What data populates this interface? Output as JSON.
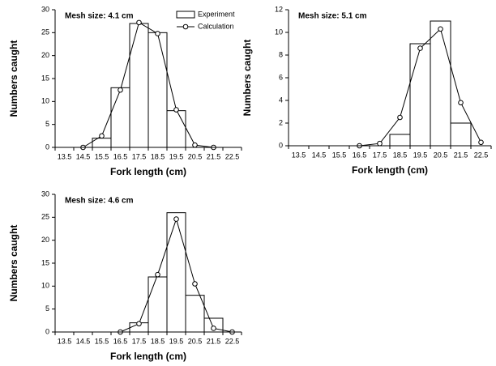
{
  "chart_data": [
    {
      "type": "bar",
      "title": "Mesh size: 4.1 cm",
      "xlabel": "Fork length (cm)",
      "ylabel": "Numbers caught",
      "categories": [
        "13.5",
        "14.5",
        "15.5",
        "16.5",
        "17.5",
        "18.5",
        "19.5",
        "20.5",
        "21.5",
        "22.5"
      ],
      "series": [
        {
          "name": "Experiment",
          "kind": "bar",
          "color": "#000000",
          "values": [
            null,
            null,
            2,
            13,
            27,
            25,
            8,
            null,
            null,
            null
          ]
        },
        {
          "name": "Calculation",
          "kind": "line",
          "color": "#000000",
          "values": [
            null,
            0,
            2.5,
            12.5,
            27.2,
            24.8,
            8.2,
            0.5,
            0,
            null
          ]
        }
      ],
      "ylim": [
        0,
        30
      ],
      "yticks": [
        0,
        5,
        10,
        15,
        20,
        25,
        30
      ],
      "legend": "upper right"
    },
    {
      "type": "bar",
      "title": "Mesh size: 5.1 cm",
      "xlabel": "Fork length (cm)",
      "ylabel": "Numbers caught",
      "categories": [
        "13.5",
        "14.5",
        "15.5",
        "16.5",
        "17.5",
        "18.5",
        "19.5",
        "20.5",
        "21.5",
        "22.5"
      ],
      "series": [
        {
          "kind": "bar",
          "color": "#000000",
          "values": [
            null,
            null,
            null,
            null,
            null,
            1,
            9,
            11,
            2,
            null
          ]
        },
        {
          "kind": "line",
          "color": "#000000",
          "values": [
            null,
            null,
            null,
            0,
            0.2,
            2.5,
            8.6,
            10.3,
            3.8,
            0.3
          ]
        }
      ],
      "ylim": [
        0,
        12
      ],
      "yticks": [
        0,
        2,
        4,
        6,
        8,
        10,
        12
      ]
    },
    {
      "type": "bar",
      "title": "Mesh size: 4.6 cm",
      "xlabel": "Fork length (cm)",
      "ylabel": "Numbers caught",
      "categories": [
        "13.5",
        "14.5",
        "15.5",
        "16.5",
        "17.5",
        "18.5",
        "19.5",
        "20.5",
        "21.5",
        "22.5"
      ],
      "series": [
        {
          "kind": "bar",
          "color": "#000000",
          "values": [
            null,
            null,
            null,
            null,
            2,
            12,
            26,
            8,
            3,
            null
          ]
        },
        {
          "kind": "line",
          "color": "#000000",
          "values": [
            null,
            null,
            null,
            0,
            1.8,
            12.5,
            24.6,
            10.5,
            0.8,
            0
          ]
        }
      ],
      "ylim": [
        0,
        30
      ],
      "yticks": [
        0,
        5,
        10,
        15,
        20,
        25,
        30
      ]
    }
  ]
}
